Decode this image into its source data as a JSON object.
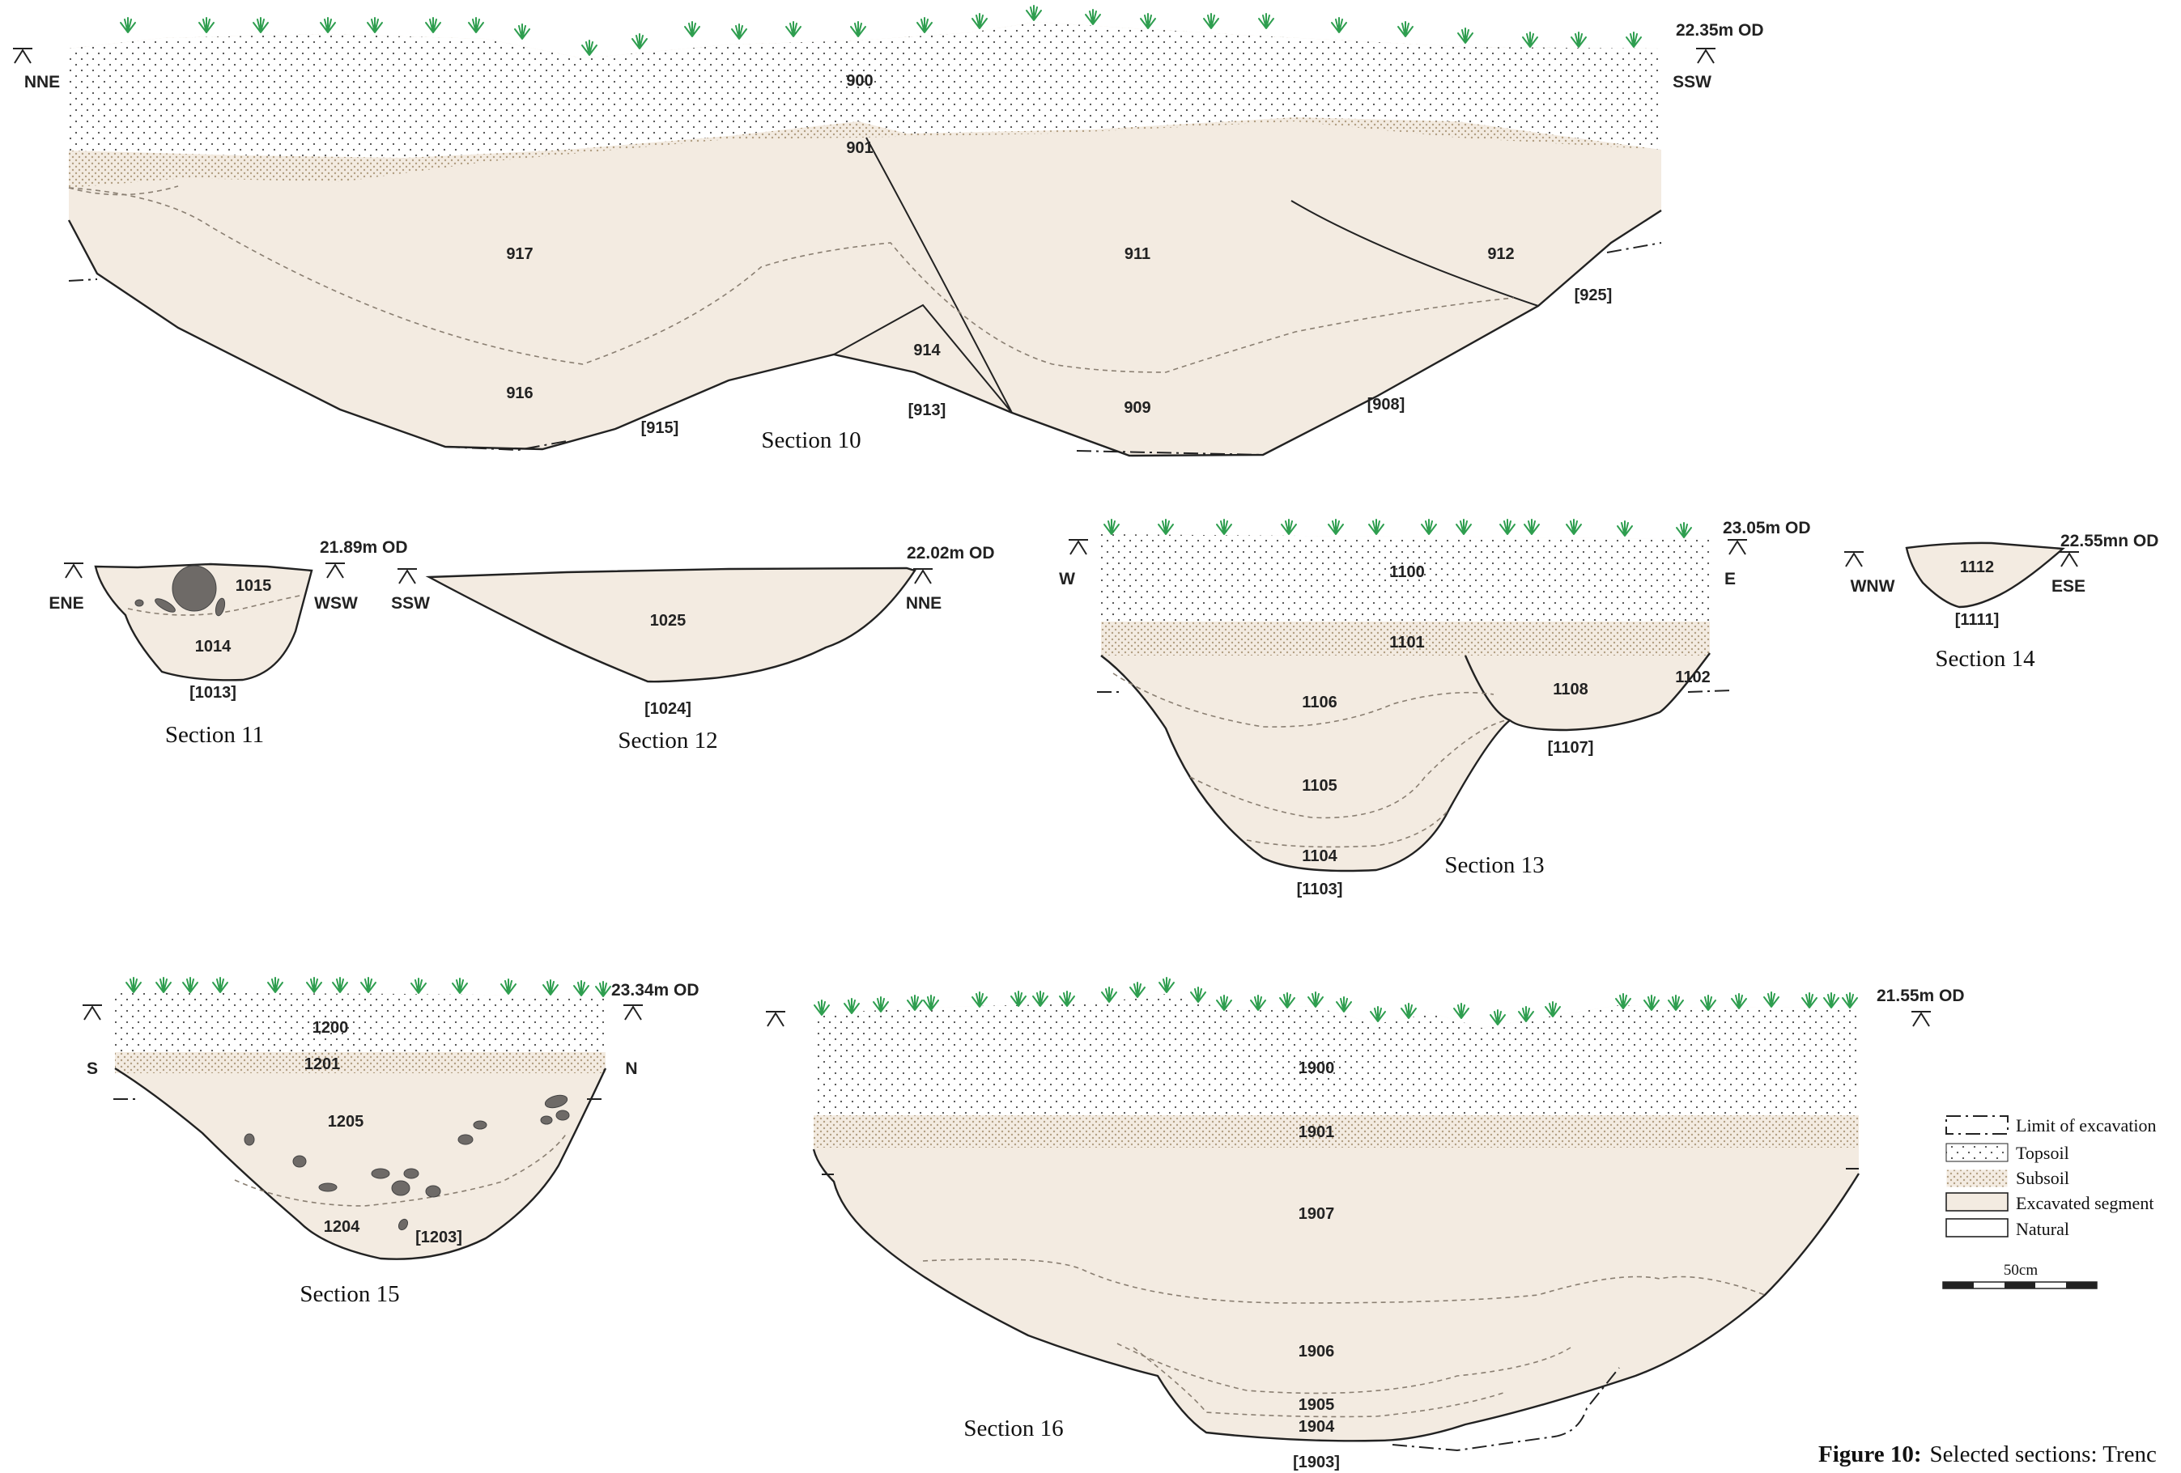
{
  "sections": {
    "s10": {
      "title": "Section 10",
      "level": "22.35m OD",
      "orient_left": "NNE",
      "orient_right": "SSW",
      "contexts": [
        "900",
        "901",
        "917",
        "911",
        "912",
        "916",
        "914",
        "909"
      ],
      "cuts": [
        "[915]",
        "[913]",
        "[908]",
        "[925]"
      ]
    },
    "s11": {
      "title": "Section 11",
      "level": "21.89m OD",
      "orient_left": "ENE",
      "orient_right": "WSW",
      "contexts": [
        "1015",
        "1014"
      ],
      "cuts": [
        "[1013]"
      ]
    },
    "s12": {
      "title": "Section 12",
      "level": "22.02m OD",
      "orient_left": "SSW",
      "orient_right": "NNE",
      "contexts": [
        "1025"
      ],
      "cuts": [
        "[1024]"
      ]
    },
    "s13": {
      "title": "Section 13",
      "level": "23.05m OD",
      "orient_left": "W",
      "orient_right": "E",
      "contexts": [
        "1100",
        "1101",
        "1106",
        "1108",
        "1102",
        "1105",
        "1104"
      ],
      "cuts": [
        "[1107]",
        "[1103]"
      ]
    },
    "s14": {
      "title": "Section 14",
      "level": "22.55mn OD",
      "orient_left": "WNW",
      "orient_right": "ESE",
      "contexts": [
        "1112"
      ],
      "cuts": [
        "[1111]"
      ]
    },
    "s15": {
      "title": "Section 15",
      "level": "23.34m OD",
      "orient_left": "S",
      "orient_right": "N",
      "contexts": [
        "1200",
        "1201",
        "1205",
        "1204"
      ],
      "cuts": [
        "[1203]"
      ]
    },
    "s16": {
      "title": "Section 16",
      "level": "21.55m OD",
      "contexts": [
        "1900",
        "1901",
        "1907",
        "1906",
        "1905",
        "1904"
      ],
      "cuts": [
        "[1903]"
      ]
    }
  },
  "legend": {
    "items": [
      "Limit of excavation",
      "Topsoil",
      "Subsoil",
      "Excavated segment",
      "Natural"
    ],
    "scale_label": "50cm"
  },
  "caption": {
    "label": "Figure 10:",
    "text": "Selected sections: Trenc"
  },
  "colors": {
    "excavated": "#f3ebe1",
    "topsoil_dot": "#4a4a4a",
    "subsoil_dot": "#b29f82",
    "grass": "#2e9e4f",
    "stone": "#6e6a67"
  }
}
